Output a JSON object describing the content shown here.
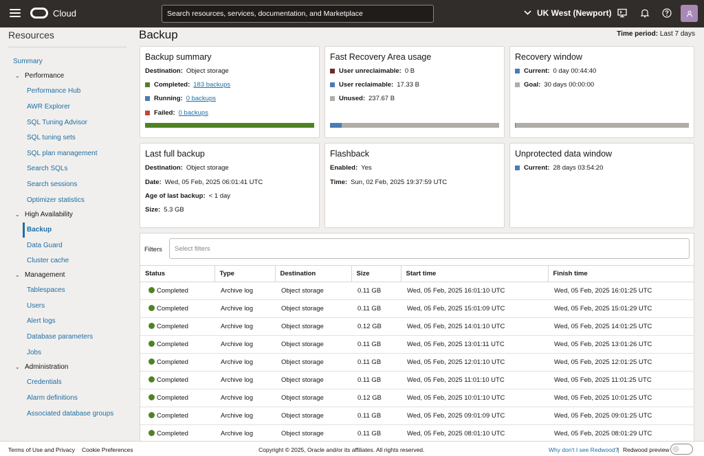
{
  "header": {
    "brand": "Cloud",
    "search_placeholder": "Search resources, services, documentation, and Marketplace",
    "region": "UK West (Newport)"
  },
  "sidebar": {
    "title": "Resources",
    "summary": "Summary",
    "groups": [
      {
        "label": "Performance",
        "items": [
          "Performance Hub",
          "AWR Explorer",
          "SQL Tuning Advisor",
          "SQL tuning sets",
          "SQL plan management",
          "Search SQLs",
          "Search sessions",
          "Optimizer statistics"
        ]
      },
      {
        "label": "High Availability",
        "items": [
          "Backup",
          "Data Guard",
          "Cluster cache"
        ]
      },
      {
        "label": "Management",
        "items": [
          "Tablespaces",
          "Users",
          "Alert logs",
          "Database parameters",
          "Jobs"
        ]
      },
      {
        "label": "Administration",
        "items": [
          "Credentials",
          "Alarm definitions",
          "Associated database groups"
        ]
      }
    ],
    "active": "Backup"
  },
  "page": {
    "title": "Backup",
    "period_label": "Time period:",
    "period_value": "Last 7 days"
  },
  "cards": {
    "backup_summary": {
      "title": "Backup summary",
      "destination_label": "Destination:",
      "destination_value": "Object storage",
      "completed_label": "Completed:",
      "completed_value": "183 backups",
      "running_label": "Running:",
      "running_value": "0 backups",
      "failed_label": "Failed:",
      "failed_value": "0 backups",
      "completed_fraction": 1.0
    },
    "fra": {
      "title": "Fast Recovery Area usage",
      "unreclaimable_label": "User unreclaimable:",
      "unreclaimable_value": "0 B",
      "reclaimable_label": "User reclaimable:",
      "reclaimable_value": "17.33 B",
      "unused_label": "Unused:",
      "unused_value": "237.67 B",
      "reclaimable_fraction": 0.068
    },
    "recovery": {
      "title": "Recovery window",
      "current_label": "Current:",
      "current_value": "0 day 00:44:40",
      "goal_label": "Goal:",
      "goal_value": "30 days 00:00:00",
      "current_fraction": 0.001
    },
    "last_full": {
      "title": "Last full backup",
      "destination_label": "Destination:",
      "destination_value": "Object storage",
      "date_label": "Date:",
      "date_value": "Wed, 05 Feb, 2025 06:01:41 UTC",
      "age_label": "Age of last backup:",
      "age_value": "< 1 day",
      "size_label": "Size:",
      "size_value": "5.3 GB"
    },
    "flashback": {
      "title": "Flashback",
      "enabled_label": "Enabled:",
      "enabled_value": "Yes",
      "time_label": "Time:",
      "time_value": "Sun, 02 Feb, 2025 19:37:59 UTC"
    },
    "unprotected": {
      "title": "Unprotected data window",
      "current_label": "Current:",
      "current_value": "28 days 03:54:20"
    }
  },
  "filters": {
    "label": "Filters",
    "placeholder": "Select filters"
  },
  "table": {
    "columns": [
      "Status",
      "Type",
      "Destination",
      "Size",
      "Start time",
      "Finish time"
    ],
    "rows": [
      [
        "Completed",
        "Archive log",
        "Object storage",
        "0.11 GB",
        "Wed, 05 Feb, 2025 16:01:10 UTC",
        "Wed, 05 Feb, 2025 16:01:25 UTC"
      ],
      [
        "Completed",
        "Archive log",
        "Object storage",
        "0.11 GB",
        "Wed, 05 Feb, 2025 15:01:09 UTC",
        "Wed, 05 Feb, 2025 15:01:29 UTC"
      ],
      [
        "Completed",
        "Archive log",
        "Object storage",
        "0.12 GB",
        "Wed, 05 Feb, 2025 14:01:10 UTC",
        "Wed, 05 Feb, 2025 14:01:25 UTC"
      ],
      [
        "Completed",
        "Archive log",
        "Object storage",
        "0.11 GB",
        "Wed, 05 Feb, 2025 13:01:11 UTC",
        "Wed, 05 Feb, 2025 13:01:26 UTC"
      ],
      [
        "Completed",
        "Archive log",
        "Object storage",
        "0.11 GB",
        "Wed, 05 Feb, 2025 12:01:10 UTC",
        "Wed, 05 Feb, 2025 12:01:25 UTC"
      ],
      [
        "Completed",
        "Archive log",
        "Object storage",
        "0.11 GB",
        "Wed, 05 Feb, 2025 11:01:10 UTC",
        "Wed, 05 Feb, 2025 11:01:25 UTC"
      ],
      [
        "Completed",
        "Archive log",
        "Object storage",
        "0.12 GB",
        "Wed, 05 Feb, 2025 10:01:10 UTC",
        "Wed, 05 Feb, 2025 10:01:25 UTC"
      ],
      [
        "Completed",
        "Archive log",
        "Object storage",
        "0.11 GB",
        "Wed, 05 Feb, 2025 09:01:09 UTC",
        "Wed, 05 Feb, 2025 09:01:25 UTC"
      ],
      [
        "Completed",
        "Archive log",
        "Object storage",
        "0.11 GB",
        "Wed, 05 Feb, 2025 08:01:10 UTC",
        "Wed, 05 Feb, 2025 08:01:29 UTC"
      ]
    ]
  },
  "footer": {
    "terms": "Terms of Use and Privacy",
    "cookies": "Cookie Preferences",
    "copyright": "Copyright © 2025, Oracle and/or its affiliates. All rights reserved.",
    "redwood_question": "Why don't I see Redwood?",
    "separator": "|",
    "redwood_preview": "Redwood preview"
  },
  "colors": {
    "completed": "#508223",
    "running": "#4a7cb6",
    "failed": "#c74634",
    "unreclaimable": "#6e2e26",
    "reclaimable": "#4a7cb6",
    "unused": "#b0aca7",
    "topbar": "#312d2a",
    "link": "#1d6fa4"
  },
  "icons": [
    "menu-icon",
    "oracle-logo-icon",
    "chevron-down-icon",
    "cloud-shell-icon",
    "notifications-icon",
    "help-icon",
    "user-icon"
  ]
}
